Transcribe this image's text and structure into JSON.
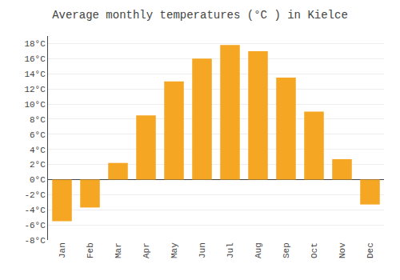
{
  "chart_data": {
    "type": "bar",
    "title": "Average monthly temperatures (°C ) in Kielce",
    "categories": [
      "Jan",
      "Feb",
      "Mar",
      "Apr",
      "May",
      "Jun",
      "Jul",
      "Aug",
      "Sep",
      "Oct",
      "Nov",
      "Dec"
    ],
    "values": [
      -5.5,
      -3.7,
      2.2,
      8.5,
      13.0,
      16.0,
      17.8,
      17.0,
      13.5,
      9.0,
      2.7,
      -3.3
    ],
    "color": "#F5A623",
    "ylim": [
      -8,
      19
    ],
    "yticks": [
      {
        "value": -8,
        "label": "-8°C"
      },
      {
        "value": -6,
        "label": "-6°C"
      },
      {
        "value": -4,
        "label": "-4°C"
      },
      {
        "value": -2,
        "label": "-2°C"
      },
      {
        "value": 0,
        "label": "0°C"
      },
      {
        "value": 2,
        "label": "2°C"
      },
      {
        "value": 4,
        "label": "4°C"
      },
      {
        "value": 6,
        "label": "6°C"
      },
      {
        "value": 8,
        "label": "8°C"
      },
      {
        "value": 10,
        "label": "10°C"
      },
      {
        "value": 12,
        "label": "12°C"
      },
      {
        "value": 14,
        "label": "14°C"
      },
      {
        "value": 16,
        "label": "16°C"
      },
      {
        "value": 18,
        "label": "18°C"
      }
    ],
    "grid": true
  }
}
